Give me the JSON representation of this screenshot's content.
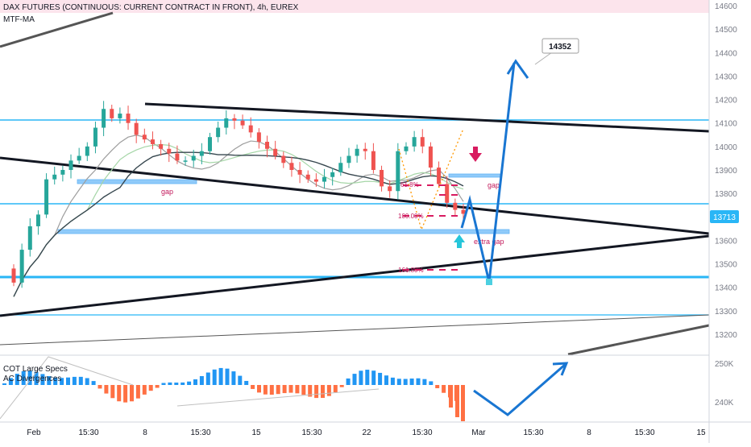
{
  "header": {
    "title": "DAX FUTURES (CONTINUOUS: CURRENT CONTRACT IN FRONT), 4h, EUREX",
    "indicator_main": "MTF-MA"
  },
  "sub_panel": {
    "indicator_1": "COT Large Specs",
    "indicator_2": "AC Divergences",
    "y_ticks": [
      "250K",
      "240K"
    ]
  },
  "colors": {
    "up": "#26a69a",
    "down": "#ef5350",
    "cyan": "#29b6f6",
    "target_blue": "#1976d2",
    "magenta": "#d81b60",
    "price_label_bg": "#29b6f6"
  },
  "chart_data": {
    "type": "candlestick",
    "instrument": "DAX FUTURES (CONTINUOUS: CURRENT CONTRACT IN FRONT)",
    "timeframe": "4h",
    "exchange": "EUREX",
    "ylim": [
      13130,
      14630
    ],
    "y_ticks": [
      13200,
      13300,
      13400,
      13500,
      13600,
      13700,
      13800,
      13900,
      14000,
      14100,
      14200,
      14300,
      14400,
      14500,
      14600
    ],
    "x_ticks": [
      "Feb",
      "15:30",
      "8",
      "15:30",
      "15",
      "15:30",
      "22",
      "15:30",
      "Mar",
      "15:30",
      "8",
      "15:30",
      "15"
    ],
    "current_price": 13713,
    "target_label": "14352",
    "horizontal_levels": [
      14115,
      13760,
      13460,
      13300
    ],
    "annotations": [
      "gap",
      "gap",
      "extra gap",
      "61.8%",
      "100.00%",
      "161.80%"
    ],
    "close_path": [
      13420,
      13560,
      13660,
      13710,
      13860,
      13880,
      13900,
      13940,
      13960,
      14000,
      14080,
      14160,
      14120,
      14140,
      14100,
      14050,
      14030,
      14010,
      13990,
      13970,
      13940,
      13940,
      13960,
      13980,
      14040,
      14080,
      14120,
      14110,
      14090,
      14060,
      14020,
      13990,
      13960,
      13930,
      13900,
      13880,
      13860,
      13850,
      13870,
      13890,
      13930,
      13960,
      13990,
      13980,
      13900,
      13830,
      13810,
      13980,
      14000,
      14040,
      14000,
      13910,
      13840,
      13760,
      13730,
      13713
    ]
  }
}
